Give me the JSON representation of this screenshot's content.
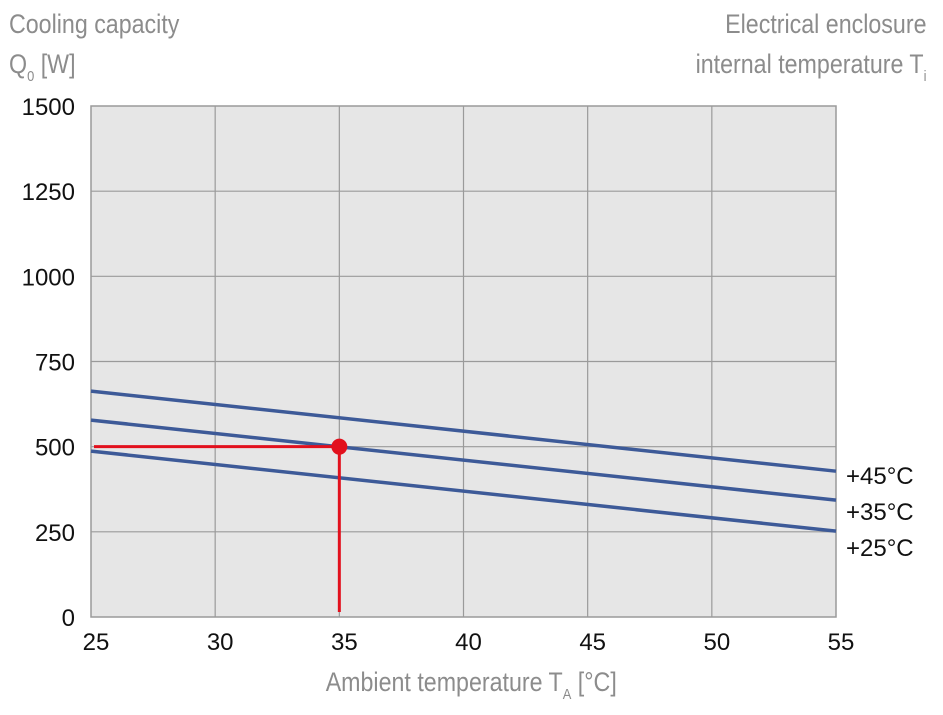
{
  "chart_data": {
    "type": "line",
    "title_left": {
      "line1": "Cooling capacity",
      "line2_main": "Q",
      "line2_sub": "0",
      "line2_unit": " [W]"
    },
    "title_right": {
      "line1": "Electrical enclosure",
      "line2_main": "internal temperature T",
      "line2_sub": "i"
    },
    "xlabel": {
      "main": "Ambient temperature T",
      "sub": "A",
      "unit": " [°C]"
    },
    "xlim": [
      25,
      55
    ],
    "ylim": [
      0,
      1500
    ],
    "grid": true,
    "x_ticks": [
      "25",
      "30",
      "35",
      "40",
      "45",
      "50",
      "55"
    ],
    "y_ticks": [
      "0",
      "250",
      "500",
      "750",
      "1000",
      "1250",
      "1500"
    ],
    "x": [
      25,
      55
    ],
    "series": [
      {
        "name": "+45°C",
        "values": [
          663,
          428
        ]
      },
      {
        "name": "+35°C",
        "values": [
          578,
          343
        ]
      },
      {
        "name": "+25°C",
        "values": [
          487,
          252
        ]
      }
    ],
    "annotation": {
      "x": 35,
      "y": 500
    },
    "colors": {
      "series": "#3d5a98",
      "annotation": "#e2101d",
      "plot_bg": "#e6e6e6",
      "grid": "#9a9a9a"
    }
  }
}
